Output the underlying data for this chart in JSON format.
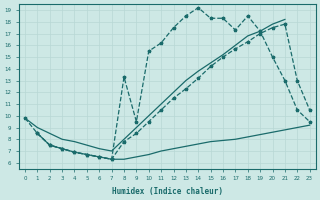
{
  "xlabel": "Humidex (Indice chaleur)",
  "xlim": [
    -0.5,
    23.5
  ],
  "ylim": [
    5.5,
    19.5
  ],
  "bg_color": "#cde8e5",
  "line_color": "#1a6b6b",
  "grid_color": "#b8d8d5",
  "line1": {
    "x": [
      0,
      1,
      2,
      3,
      4,
      5,
      6,
      7,
      8,
      9,
      10,
      11,
      12,
      13,
      14,
      15,
      16,
      17,
      18,
      19,
      20,
      21
    ],
    "y": [
      9.8,
      9.0,
      8.5,
      8.0,
      7.8,
      7.5,
      7.2,
      7.0,
      8.0,
      9.0,
      10.0,
      11.0,
      12.0,
      13.0,
      13.8,
      14.5,
      15.2,
      16.0,
      16.8,
      17.2,
      17.8,
      18.2
    ],
    "linestyle": "-",
    "marker": "none"
  },
  "line2": {
    "x": [
      1,
      2,
      3,
      4,
      5,
      6,
      7,
      8,
      9,
      10,
      11,
      12,
      13,
      14,
      15,
      16,
      17,
      18,
      19,
      20,
      21,
      22,
      23
    ],
    "y": [
      8.5,
      7.5,
      7.2,
      6.9,
      6.7,
      6.5,
      6.3,
      6.3,
      6.5,
      6.7,
      7.0,
      7.2,
      7.4,
      7.6,
      7.8,
      7.9,
      8.0,
      8.2,
      8.4,
      8.6,
      8.8,
      9.0,
      9.2
    ],
    "linestyle": "-",
    "marker": "none"
  },
  "line3": {
    "x": [
      1,
      2,
      3,
      4,
      5,
      6,
      7,
      8,
      9,
      10,
      11,
      12,
      13,
      14,
      15,
      16,
      17,
      18,
      19,
      20,
      21,
      22,
      23
    ],
    "y": [
      8.5,
      7.5,
      7.2,
      6.9,
      6.7,
      6.5,
      6.3,
      13.3,
      9.5,
      15.5,
      16.2,
      17.5,
      18.5,
      19.2,
      18.3,
      18.3,
      17.3,
      18.5,
      17.2,
      15.0,
      13.0,
      10.5,
      9.5
    ],
    "linestyle": "--",
    "marker": "*"
  },
  "line4": {
    "x": [
      0,
      1,
      2,
      3,
      4,
      5,
      6,
      7,
      8,
      9,
      10,
      11,
      12,
      13,
      14,
      15,
      16,
      17,
      18,
      19,
      20,
      21,
      22,
      23
    ],
    "y": [
      9.8,
      8.5,
      7.5,
      7.2,
      6.9,
      6.7,
      6.5,
      6.3,
      7.8,
      8.5,
      9.5,
      10.5,
      11.5,
      12.3,
      13.2,
      14.2,
      15.0,
      15.7,
      16.3,
      17.0,
      17.5,
      17.8,
      13.0,
      10.5
    ],
    "linestyle": "--",
    "marker": "*"
  }
}
